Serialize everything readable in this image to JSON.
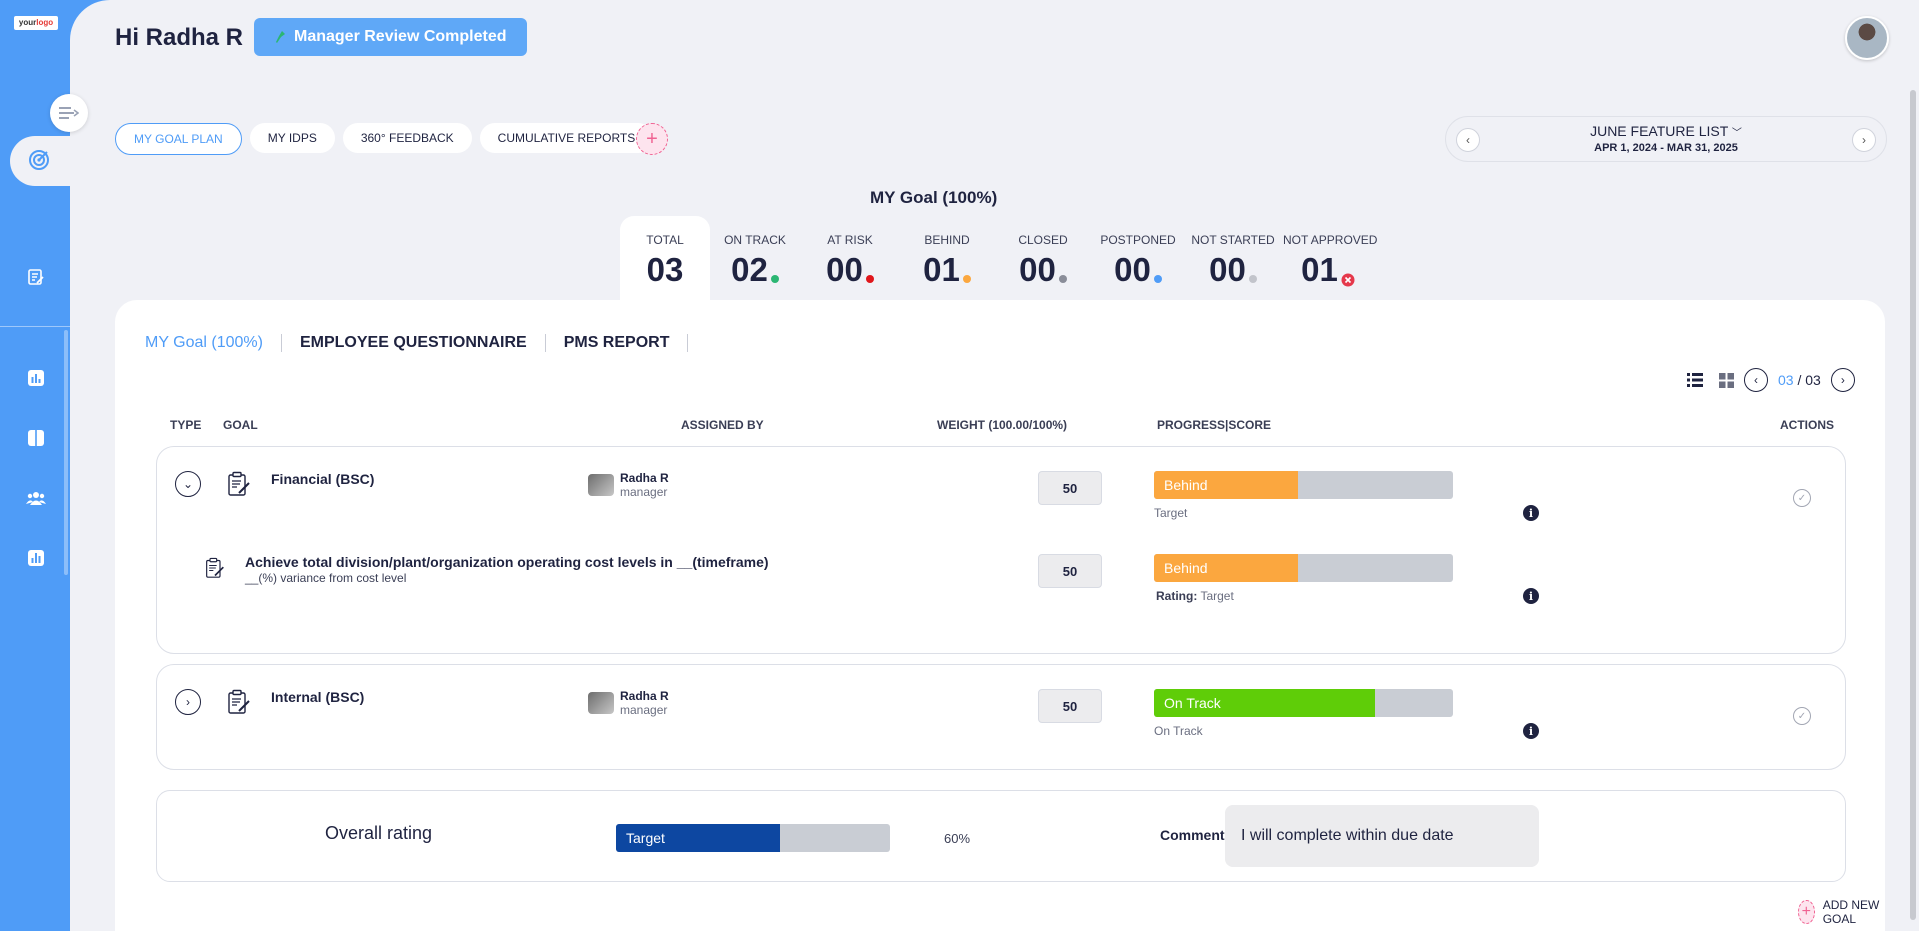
{
  "colors": {
    "brand_blue": "#4f9cf7",
    "behind": "#fba73f",
    "on_track": "#5fcd08",
    "target": "#0d47a1",
    "bar_track": "#c9cdd4"
  },
  "sidebar": {
    "logo_text_main": "your",
    "logo_text_accent": "logo",
    "icons": [
      "menu-toggle-icon",
      "goal-target-icon",
      "document-edit-icon",
      "chart-icon",
      "layout-icon",
      "users-icon",
      "report-chart-icon"
    ]
  },
  "header": {
    "greeting": "Hi Radha R",
    "status_label": "Manager Review Completed"
  },
  "tabs": [
    {
      "label": "MY GOAL PLAN",
      "active": true
    },
    {
      "label": "MY IDPS"
    },
    {
      "label": "360° FEEDBACK"
    },
    {
      "label": "CUMULATIVE REPORTS"
    }
  ],
  "period": {
    "title": "JUNE FEATURE LIST",
    "dates": "APR 1, 2024 - MAR 31, 2025"
  },
  "goal_heading": "MY Goal (100%)",
  "stats": [
    {
      "label": "TOTAL",
      "value": "03",
      "dot": ""
    },
    {
      "label": "ON TRACK",
      "value": "02",
      "dot": "#2bb673"
    },
    {
      "label": "AT RISK",
      "value": "00",
      "dot": "#e0161b"
    },
    {
      "label": "BEHIND",
      "value": "01",
      "dot": "#fba73f"
    },
    {
      "label": "CLOSED",
      "value": "00",
      "dot": "#8a8d99"
    },
    {
      "label": "POSTPONED",
      "value": "00",
      "dot": "#4f9cf7"
    },
    {
      "label": "NOT STARTED",
      "value": "00",
      "dot": "#c2c4cb"
    },
    {
      "label": "NOT APPROVED",
      "value": "01",
      "dot": "x"
    }
  ],
  "subtabs": [
    "MY Goal (100%)",
    "EMPLOYEE QUESTIONNAIRE",
    "PMS REPORT"
  ],
  "pager": {
    "current": "03",
    "separator": "/",
    "total": "03"
  },
  "table_headers": {
    "type": "TYPE",
    "goal": "GOAL",
    "assigned_by": "ASSIGNED BY",
    "weight": "WEIGHT (100.00/100%)",
    "progress": "PROGRESS|SCORE",
    "actions": "ACTIONS"
  },
  "goals": [
    {
      "title": "Financial (BSC)",
      "assignee_name": "Radha R",
      "assignee_role": "manager",
      "weight": "50",
      "status": "Behind",
      "progress": 0.48,
      "caption": "Target",
      "sub": {
        "title": "Achieve total division/plant/organization operating cost levels in __(timeframe)",
        "desc": "__(%) variance from cost level",
        "weight": "50",
        "status": "Behind",
        "progress": 0.48,
        "rating_label": "Rating:",
        "rating_value": "Target"
      }
    },
    {
      "title": "Internal (BSC)",
      "assignee_name": "Radha R",
      "assignee_role": "manager",
      "weight": "50",
      "status": "On Track",
      "progress": 0.74,
      "caption": "On Track"
    }
  ],
  "overall": {
    "label": "Overall rating",
    "bar_label": "Target",
    "progress": 0.6,
    "percent": "60%",
    "comment_label": "Comment",
    "comment": "I will complete within due date"
  },
  "add_goal_label": "ADD NEW GOAL"
}
